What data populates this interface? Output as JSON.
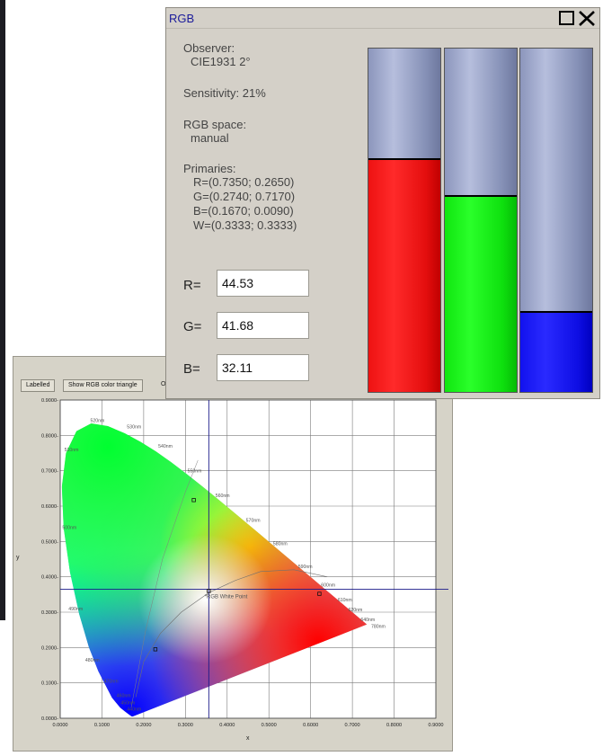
{
  "rgb_window": {
    "title": "RGB",
    "observer_label": "Observer:",
    "observer_value": "CIE1931 2°",
    "sensitivity": "Sensitivity: 21%",
    "rgb_space_label": "RGB space:",
    "rgb_space_value": "manual",
    "primaries_label": "Primaries:",
    "primaries": [
      "R=(0.7350; 0.2650)",
      "G=(0.2740; 0.7170)",
      "B=(0.1670; 0.0090)",
      "W=(0.3333; 0.3333)"
    ],
    "channels": [
      {
        "label": "R=",
        "value": "44.53",
        "level": 0.6797,
        "color": "#ff1a1a"
      },
      {
        "label": "G=",
        "value": "41.68",
        "level": 0.5729,
        "color": "#1aff1a"
      },
      {
        "label": "B=",
        "value": "32.11",
        "level": 0.2344,
        "color": "#1a1aff"
      }
    ]
  },
  "cie_window": {
    "toolbar": {
      "labelled_btn": "Labelled",
      "triangle_btn": "Show RGB color triangle",
      "more": "O"
    },
    "chart_data": {
      "type": "scatter",
      "xlabel": "x",
      "ylabel": "y",
      "xlim": [
        0,
        0.9
      ],
      "ylim": [
        0,
        0.9
      ],
      "x_ticks": [
        "0.0000",
        "0.1000",
        "0.2000",
        "0.3000",
        "0.4000",
        "0.5000",
        "0.6000",
        "0.7000",
        "0.8000",
        "0.9000"
      ],
      "y_ticks": [
        "0.0000-",
        "0.1000-",
        "0.2000-",
        "0.3000-",
        "0.4000-",
        "0.5000-",
        "0.6000-",
        "0.7000-",
        "0.8000-",
        "0.9000-"
      ],
      "wavelength_labels": [
        {
          "text": "440nm",
          "x": 0.16,
          "y": 0.022
        },
        {
          "text": "450nm",
          "x": 0.145,
          "y": 0.04
        },
        {
          "text": "460nm",
          "x": 0.135,
          "y": 0.06
        },
        {
          "text": "470nm",
          "x": 0.105,
          "y": 0.1
        },
        {
          "text": "480nm",
          "x": 0.06,
          "y": 0.16
        },
        {
          "text": "490nm",
          "x": 0.02,
          "y": 0.305
        },
        {
          "text": "500nm",
          "x": 0.005,
          "y": 0.535
        },
        {
          "text": "510nm",
          "x": 0.01,
          "y": 0.755
        },
        {
          "text": "520nm",
          "x": 0.072,
          "y": 0.838
        },
        {
          "text": "530nm",
          "x": 0.16,
          "y": 0.82
        },
        {
          "text": "540nm",
          "x": 0.235,
          "y": 0.765
        },
        {
          "text": "550nm",
          "x": 0.305,
          "y": 0.695
        },
        {
          "text": "560nm",
          "x": 0.372,
          "y": 0.625
        },
        {
          "text": "570nm",
          "x": 0.445,
          "y": 0.555
        },
        {
          "text": "580nm",
          "x": 0.51,
          "y": 0.49
        },
        {
          "text": "590nm",
          "x": 0.57,
          "y": 0.425
        },
        {
          "text": "600nm",
          "x": 0.625,
          "y": 0.372
        },
        {
          "text": "610nm",
          "x": 0.665,
          "y": 0.33
        },
        {
          "text": "620nm",
          "x": 0.69,
          "y": 0.303
        },
        {
          "text": "640nm",
          "x": 0.72,
          "y": 0.275
        },
        {
          "text": "780nm",
          "x": 0.745,
          "y": 0.255
        }
      ],
      "points": [
        {
          "x": 0.32,
          "y": 0.617
        },
        {
          "x": 0.228,
          "y": 0.195
        },
        {
          "x": 0.356,
          "y": 0.36
        },
        {
          "x": 0.621,
          "y": 0.352
        }
      ],
      "white_point_label": "*RGB White Point",
      "crosshair": {
        "x": 0.356,
        "y": 0.365
      }
    }
  }
}
